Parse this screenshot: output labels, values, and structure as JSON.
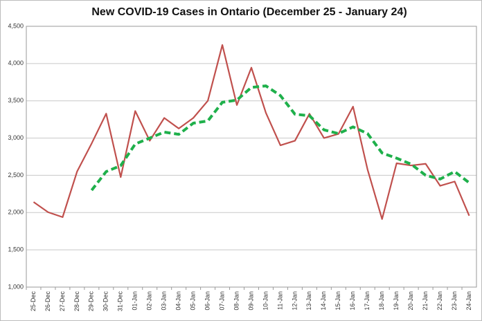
{
  "chart_data": {
    "type": "line",
    "title": "New COVID-19 Cases in Ontario (December 25 - January 24)",
    "categories": [
      "25-Dec",
      "26-Dec",
      "27-Dec",
      "28-Dec",
      "29-Dec",
      "30-Dec",
      "31-Dec",
      "01-Jan",
      "02-Jan",
      "03-Jan",
      "04-Jan",
      "05-Jan",
      "06-Jan",
      "07-Jan",
      "08-Jan",
      "09-Jan",
      "10-Jan",
      "11-Jan",
      "12-Jan",
      "13-Jan",
      "14-Jan",
      "15-Jan",
      "16-Jan",
      "17-Jan",
      "18-Jan",
      "19-Jan",
      "20-Jan",
      "21-Jan",
      "22-Jan",
      "23-Jan",
      "24-Jan"
    ],
    "series": [
      {
        "color": "#c0504d",
        "dashed": false,
        "values": [
          2142,
          2005,
          1939,
          2553,
          2928,
          3328,
          2476,
          3363,
          2964,
          3270,
          3128,
          3270,
          3500,
          4249,
          3443,
          3945,
          3338,
          2903,
          2964,
          3326,
          3000,
          3056,
          3422,
          2578,
          1913,
          2662,
          2632,
          2655,
          2359,
          2417,
          1958
        ]
      },
      {
        "color": "#1fb04b",
        "dashed": true,
        "values": [
          null,
          null,
          null,
          null,
          2300,
          2550,
          2630,
          2920,
          3000,
          3080,
          3050,
          3200,
          3230,
          3480,
          3510,
          3680,
          3700,
          3570,
          3320,
          3300,
          3110,
          3060,
          3150,
          3060,
          2800,
          2730,
          2650,
          2500,
          2450,
          2550,
          2400
        ]
      }
    ],
    "ylim": [
      1000,
      4500
    ],
    "yticks": [
      {
        "value": 1000,
        "label": "1,000"
      },
      {
        "value": 1500,
        "label": "1,500"
      },
      {
        "value": 2000,
        "label": "2,000"
      },
      {
        "value": 2500,
        "label": "2,500"
      },
      {
        "value": 3000,
        "label": "3,000"
      },
      {
        "value": 3500,
        "label": "3,500"
      },
      {
        "value": 4000,
        "label": "4,000"
      },
      {
        "value": 4500,
        "label": "4,500"
      }
    ],
    "grid": true
  }
}
